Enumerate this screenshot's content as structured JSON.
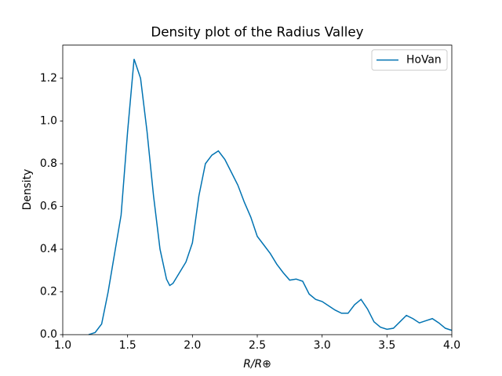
{
  "chart_data": {
    "type": "line",
    "title": "Density plot of the Radius Valley",
    "xlabel": "R/R⊕",
    "ylabel": "Density",
    "x": [
      1.2,
      1.25,
      1.3,
      1.35,
      1.4,
      1.45,
      1.5,
      1.55,
      1.6,
      1.65,
      1.7,
      1.75,
      1.8,
      1.825,
      1.85,
      1.9,
      1.95,
      2.0,
      2.05,
      2.1,
      2.15,
      2.2,
      2.25,
      2.3,
      2.35,
      2.4,
      2.45,
      2.5,
      2.55,
      2.6,
      2.65,
      2.7,
      2.75,
      2.8,
      2.85,
      2.9,
      2.95,
      3.0,
      3.05,
      3.1,
      3.15,
      3.2,
      3.25,
      3.3,
      3.35,
      3.4,
      3.45,
      3.5,
      3.55,
      3.6,
      3.65,
      3.7,
      3.75,
      3.8,
      3.85,
      3.9,
      3.95,
      4.0
    ],
    "series": [
      {
        "name": "HoVan",
        "color": "#0173b2",
        "values": [
          0,
          0.01,
          0.05,
          0.2,
          0.38,
          0.56,
          0.95,
          1.29,
          1.2,
          0.95,
          0.65,
          0.4,
          0.26,
          0.23,
          0.24,
          0.29,
          0.34,
          0.43,
          0.65,
          0.8,
          0.84,
          0.86,
          0.82,
          0.76,
          0.7,
          0.62,
          0.55,
          0.46,
          0.42,
          0.38,
          0.33,
          0.29,
          0.255,
          0.26,
          0.25,
          0.19,
          0.165,
          0.155,
          0.135,
          0.115,
          0.1,
          0.1,
          0.14,
          0.165,
          0.12,
          0.06,
          0.035,
          0.025,
          0.03,
          0.06,
          0.09,
          0.075,
          0.055,
          0.065,
          0.075,
          0.055,
          0.03,
          0.02
        ]
      }
    ],
    "xlim": [
      1.0,
      4.0
    ],
    "ylim": [
      0,
      1.355
    ],
    "xticks": [
      {
        "value": 1.0,
        "label": "1.0"
      },
      1.5,
      {
        "value": 2.0,
        "label": "2.0"
      },
      2.5,
      {
        "value": 3.0,
        "label": "3.0"
      },
      3.5,
      {
        "value": 4.0,
        "label": "4.0"
      }
    ],
    "yticks": [
      {
        "value": 0,
        "label": "0.0"
      },
      0.2,
      0.4,
      0.6,
      0.8,
      {
        "value": 1.0,
        "label": "1.0"
      },
      1.2
    ],
    "legend": "upper right"
  }
}
